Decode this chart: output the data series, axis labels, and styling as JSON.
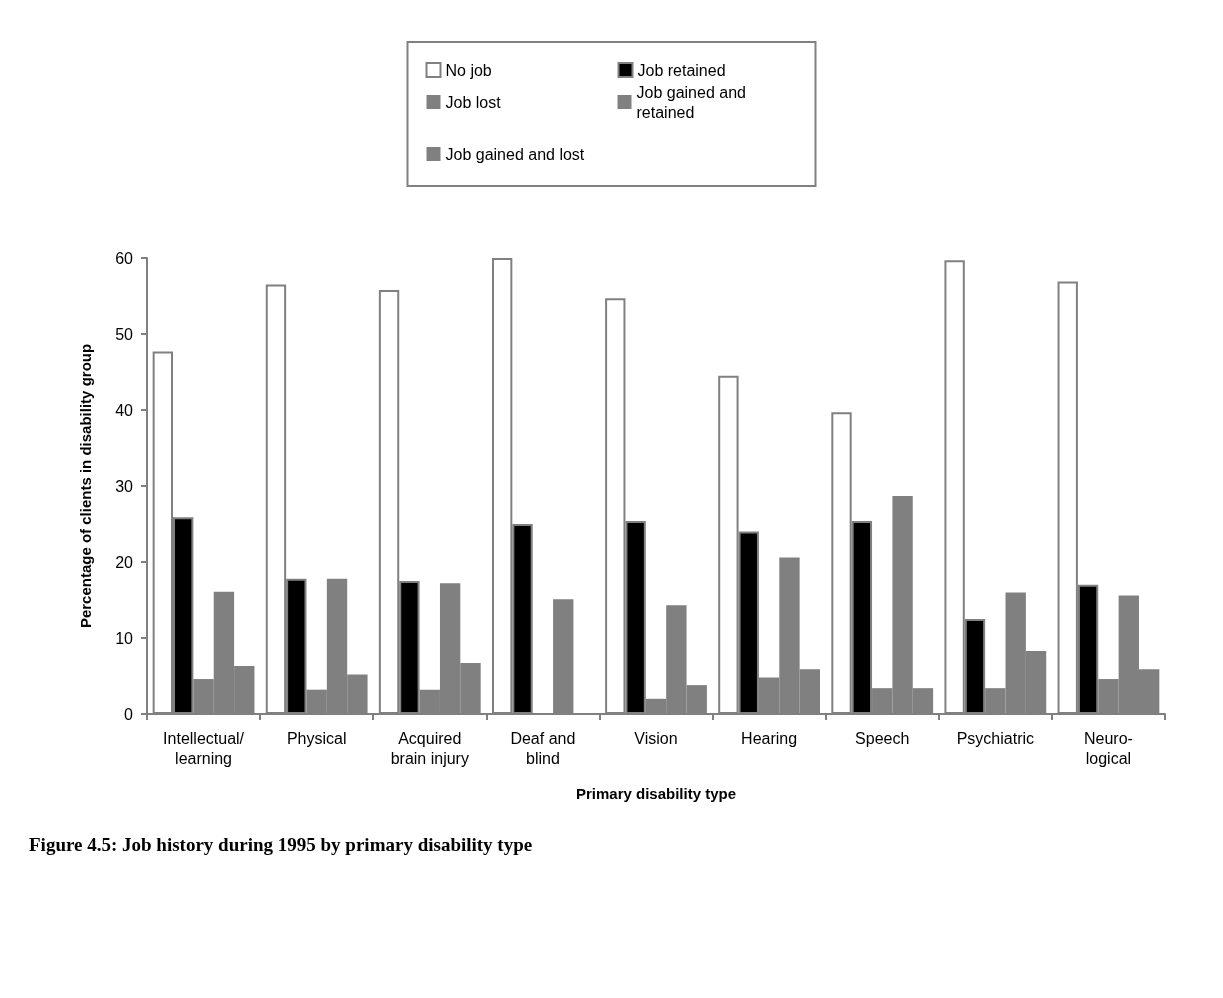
{
  "chart_data": {
    "type": "bar",
    "title": "Figure 4.5: Job history during 1995 by primary disability type",
    "xlabel": "Primary disability type",
    "ylabel": "Percentage of clients in disability group",
    "categories": [
      "Intellectual/\nlearning",
      "Physical",
      "Acquired\nbrain injury",
      "Deaf and\nblind",
      "Vision",
      "Hearing",
      "Speech",
      "Psychiatric",
      "Neuro-\nlogical"
    ],
    "series": [
      {
        "name": "No job",
        "color": "#ffffff",
        "values": [
          47.7,
          56.5,
          55.8,
          60,
          54.7,
          44.5,
          39.7,
          59.7,
          56.9
        ]
      },
      {
        "name": "Job retained",
        "color": "#000000",
        "values": [
          25.9,
          17.8,
          17.5,
          25,
          25.4,
          24,
          25.4,
          12.5,
          17
        ]
      },
      {
        "name": "Job lost",
        "color": "#808080",
        "values": [
          4.6,
          3.2,
          3.2,
          0,
          2,
          4.8,
          3.4,
          3.4,
          4.6
        ]
      },
      {
        "name": "Job gained and retained",
        "color": "#808080",
        "values": [
          16.1,
          17.8,
          17.2,
          15.1,
          14.3,
          20.6,
          28.7,
          16,
          15.6
        ]
      },
      {
        "name": "Job gained and lost",
        "color": "#808080",
        "values": [
          6.3,
          5.2,
          6.7,
          0,
          3.8,
          5.9,
          3.4,
          8.3,
          5.9
        ]
      }
    ],
    "ylim": [
      0,
      60
    ],
    "yticks": [
      0,
      10,
      20,
      30,
      40,
      50,
      60
    ],
    "grid": false,
    "legend": "top"
  }
}
